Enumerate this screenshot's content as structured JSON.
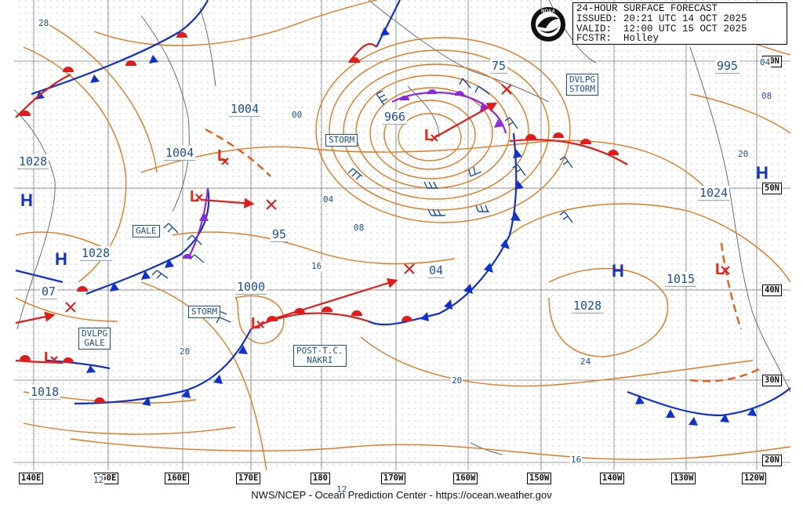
{
  "header": {
    "title": "24-HOUR SURFACE FORECAST",
    "issued": "ISSUED: 20:21 UTC 14 OCT 2025",
    "valid": "VALID:  12:00 UTC 15 OCT 2025",
    "forecaster": "FCSTR:  Holley",
    "logo_text": "NOAA"
  },
  "footer": "NWS/NCEP - Ocean Prediction Center - https://ocean.weather.gov",
  "lon_labels": [
    "140E",
    "150E",
    "160E",
    "170E",
    "180",
    "170W",
    "160W",
    "150W",
    "140W",
    "130W",
    "120W"
  ],
  "lat_labels": [
    "60N",
    "50N",
    "40N",
    "30N",
    "20N"
  ],
  "pressure_labels": [
    "1004",
    "1004",
    "1028",
    "1028",
    "966",
    "75",
    "995",
    "1024",
    "95",
    "04",
    "1000",
    "1015",
    "1028",
    "07",
    "1018"
  ],
  "isobar_labels": [
    "28",
    "00",
    "04",
    "08",
    "16",
    "20",
    "20",
    "24",
    "16",
    "12",
    "12",
    "08",
    "20",
    "04"
  ],
  "box_labels": {
    "storm_north": "STORM",
    "gale": "GALE",
    "storm_west": "STORM",
    "dvlpg_gale": "DVLPG\nGALE",
    "dvlpg_storm": "DVLPG\nSTORM",
    "post_tc": "POST-T.C.\nNAKRI"
  },
  "high_symbol": "H",
  "low_symbol": "L",
  "colors": {
    "isobar": "#e07a1e",
    "cold_front": "#1030d0",
    "warm_front": "#e21b1b",
    "occluded": "#8a2be2",
    "arrow": "#e21b1b",
    "text": "#1a4fa0",
    "grid": "#888888"
  }
}
